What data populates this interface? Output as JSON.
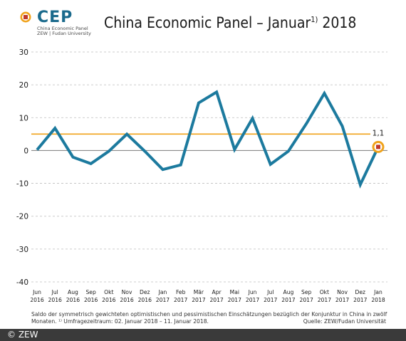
{
  "logo": {
    "text": "CEP",
    "line1": "China Economic Panel",
    "line2": "ZEW | Fudan University"
  },
  "title": {
    "main": "China Economic Panel – Januar",
    "sup": "1)",
    "year": " 2018"
  },
  "caption": {
    "text": "Saldo der symmetrisch gewichteten optimistischen und pessimistischen Einschätzungen bezüglich der Konjunktur in China in zwölf Monaten. ¹⁾ Umfragezeitraum: 02. Januar 2018 – 11. Januar 2018.",
    "source": "Quelle: ZEW/Fudan Universität"
  },
  "footer": {
    "copyright": "© ZEW"
  },
  "colors": {
    "line": "#1c7a9e",
    "reference": "#f0a21a",
    "zero": "#8a8a8a",
    "marker_fill": "#c0392b",
    "marker_ring": "#f0a21a"
  },
  "chart_data": {
    "type": "line",
    "title": "China Economic Panel – Januar 2018",
    "categories": [
      [
        "Jun",
        "2016"
      ],
      [
        "Jul",
        "2016"
      ],
      [
        "Aug",
        "2016"
      ],
      [
        "Sep",
        "2016"
      ],
      [
        "Okt",
        "2016"
      ],
      [
        "Nov",
        "2016"
      ],
      [
        "Dez",
        "2016"
      ],
      [
        "Jan",
        "2017"
      ],
      [
        "Feb",
        "2017"
      ],
      [
        "Mär",
        "2017"
      ],
      [
        "Apr",
        "2017"
      ],
      [
        "Mai",
        "2017"
      ],
      [
        "Jun",
        "2017"
      ],
      [
        "Jul",
        "2017"
      ],
      [
        "Aug",
        "2017"
      ],
      [
        "Sep",
        "2017"
      ],
      [
        "Okt",
        "2017"
      ],
      [
        "Nov",
        "2017"
      ],
      [
        "Dez",
        "2017"
      ],
      [
        "Jan",
        "2018"
      ]
    ],
    "values": [
      0.2,
      6.8,
      -2.0,
      -4.0,
      -0.2,
      5.0,
      -0.2,
      -5.8,
      -4.4,
      14.5,
      17.8,
      0.3,
      9.8,
      -4.2,
      -0.2,
      8.2,
      17.4,
      7.4,
      -10.4,
      1.1
    ],
    "reference_line": 5.0,
    "last_label": "1,1",
    "yticks": [
      30,
      20,
      10,
      0,
      -10,
      -20,
      -30,
      -40
    ],
    "ylim": [
      -40,
      30
    ],
    "grid": "horizontal dashed"
  }
}
